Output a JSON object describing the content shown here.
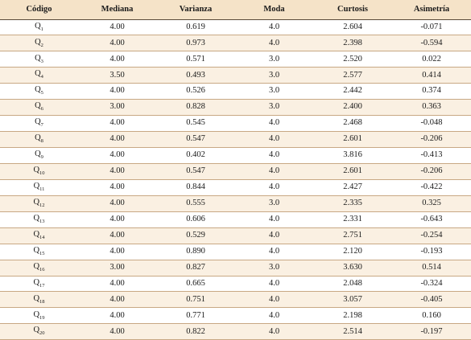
{
  "table": {
    "headers": [
      "Código",
      "Mediana",
      "Varianza",
      "Moda",
      "Curtosis",
      "Asimetría"
    ],
    "rows": [
      {
        "code": "Q",
        "sub": "1",
        "mediana": "4.00",
        "varianza": "0.619",
        "moda": "4.0",
        "curtosis": "2.604",
        "asimetria": "-0.071"
      },
      {
        "code": "Q",
        "sub": "2",
        "mediana": "4.00",
        "varianza": "0.973",
        "moda": "4.0",
        "curtosis": "2.398",
        "asimetria": "-0.594"
      },
      {
        "code": "Q",
        "sub": "3",
        "mediana": "4.00",
        "varianza": "0.571",
        "moda": "3.0",
        "curtosis": "2.520",
        "asimetria": "0.022"
      },
      {
        "code": "Q",
        "sub": "4",
        "mediana": "3.50",
        "varianza": "0.493",
        "moda": "3.0",
        "curtosis": "2.577",
        "asimetria": "0.414"
      },
      {
        "code": "Q",
        "sub": "5",
        "mediana": "4.00",
        "varianza": "0.526",
        "moda": "3.0",
        "curtosis": "2.442",
        "asimetria": "0.374"
      },
      {
        "code": "Q",
        "sub": "6",
        "mediana": "3.00",
        "varianza": "0.828",
        "moda": "3.0",
        "curtosis": "2.400",
        "asimetria": "0.363"
      },
      {
        "code": "Q",
        "sub": "7",
        "mediana": "4.00",
        "varianza": "0.545",
        "moda": "4.0",
        "curtosis": "2.468",
        "asimetria": "-0.048"
      },
      {
        "code": "Q",
        "sub": "8",
        "mediana": "4.00",
        "varianza": "0.547",
        "moda": "4.0",
        "curtosis": "2.601",
        "asimetria": "-0.206"
      },
      {
        "code": "Q",
        "sub": "9",
        "mediana": "4.00",
        "varianza": "0.402",
        "moda": "4.0",
        "curtosis": "3.816",
        "asimetria": "-0.413"
      },
      {
        "code": "Q",
        "sub": "10",
        "mediana": "4.00",
        "varianza": "0.547",
        "moda": "4.0",
        "curtosis": "2.601",
        "asimetria": "-0.206"
      },
      {
        "code": "Q",
        "sub": "11",
        "mediana": "4.00",
        "varianza": "0.844",
        "moda": "4.0",
        "curtosis": "2.427",
        "asimetria": "-0.422"
      },
      {
        "code": "Q",
        "sub": "12",
        "mediana": "4.00",
        "varianza": "0.555",
        "moda": "3.0",
        "curtosis": "2.335",
        "asimetria": "0.325"
      },
      {
        "code": "Q",
        "sub": "13",
        "mediana": "4.00",
        "varianza": "0.606",
        "moda": "4.0",
        "curtosis": "2.331",
        "asimetria": "-0.643"
      },
      {
        "code": "Q",
        "sub": "14",
        "mediana": "4.00",
        "varianza": "0.529",
        "moda": "4.0",
        "curtosis": "2.751",
        "asimetria": "-0.254"
      },
      {
        "code": "Q",
        "sub": "15",
        "mediana": "4.00",
        "varianza": "0.890",
        "moda": "4.0",
        "curtosis": "2.120",
        "asimetria": "-0.193"
      },
      {
        "code": "Q",
        "sub": "16",
        "mediana": "3.00",
        "varianza": "0.827",
        "moda": "3.0",
        "curtosis": "3.630",
        "asimetria": "0.514"
      },
      {
        "code": "Q",
        "sub": "17",
        "mediana": "4.00",
        "varianza": "0.665",
        "moda": "4.0",
        "curtosis": "2.048",
        "asimetria": "-0.324"
      },
      {
        "code": "Q",
        "sub": "18",
        "mediana": "4.00",
        "varianza": "0.751",
        "moda": "4.0",
        "curtosis": "3.057",
        "asimetria": "-0.405"
      },
      {
        "code": "Q",
        "sub": "19",
        "mediana": "4.00",
        "varianza": "0.771",
        "moda": "4.0",
        "curtosis": "2.198",
        "asimetria": "0.160"
      },
      {
        "code": "Q",
        "sub": "20",
        "mediana": "4.00",
        "varianza": "0.822",
        "moda": "4.0",
        "curtosis": "2.514",
        "asimetria": "-0.197"
      }
    ]
  },
  "colors": {
    "header_bg": "#f5e3c8",
    "row_alt_bg": "#faf0e2",
    "rule": "#c8a884"
  }
}
